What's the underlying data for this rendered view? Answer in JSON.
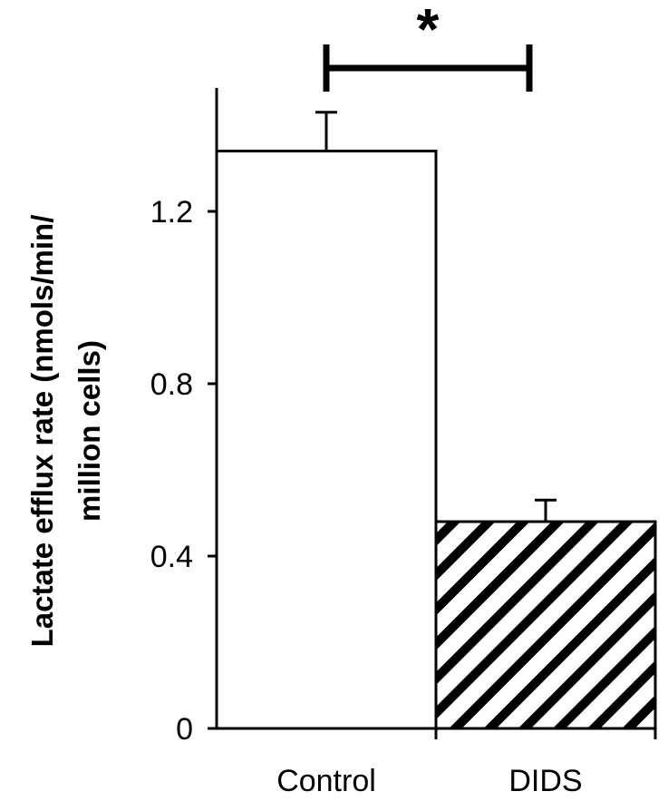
{
  "chart_data": {
    "type": "bar",
    "title": "",
    "categories": [
      "Control",
      "DIDS"
    ],
    "values": [
      1.34,
      0.48
    ],
    "errors": [
      0.09,
      0.05
    ],
    "fills": [
      "solid-white",
      "diagonal-hatch"
    ],
    "ylabel_lines": [
      "Lactate efflux rate (nmols/min/",
      "million cells)"
    ],
    "ylim": [
      0,
      1.5
    ],
    "yticks": [
      0,
      0.4,
      0.8,
      1.2
    ],
    "ytick_labels": [
      "0",
      "0.4",
      "0.8",
      "1.2"
    ],
    "significance": {
      "between": [
        "Control",
        "DIDS"
      ],
      "label": "*"
    },
    "grid": false,
    "legend": "none"
  },
  "colors": {
    "bar_stroke": "#000000",
    "bar_fill": "#ffffff",
    "hatch": "#000000"
  }
}
